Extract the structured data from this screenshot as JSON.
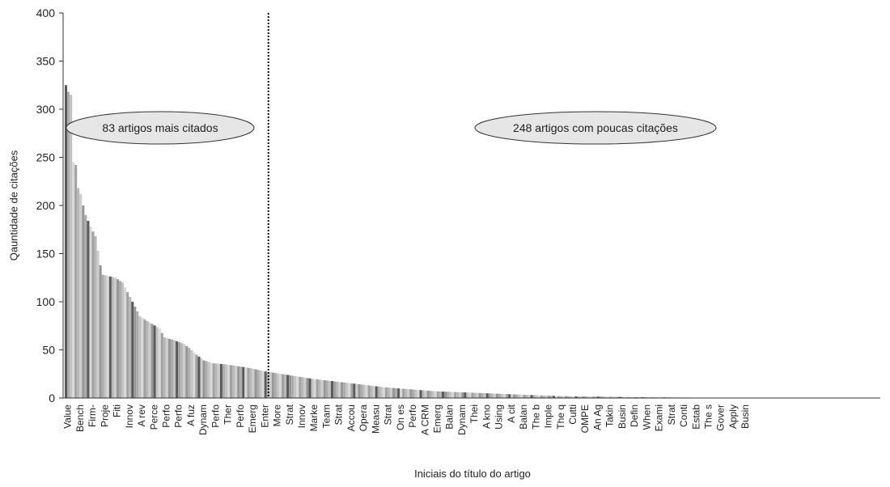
{
  "chart_data": {
    "type": "bar",
    "xlabel": "Iniciais do título do artigo",
    "ylabel": "Qauntidade de citações",
    "ylim": [
      0,
      400
    ],
    "yticks": [
      0,
      50,
      100,
      150,
      200,
      250,
      300,
      350,
      400
    ],
    "n_articles": 331,
    "split_after_index": 83,
    "labeled_every": 5,
    "tick_labels": [
      "Value",
      "Bench",
      "Firm-",
      "Proje",
      "Fiti",
      "Innov",
      "A rev",
      "Perce",
      "Perfo",
      "Perfo",
      "A fuz",
      "Dynam",
      "Perfo",
      "Ther",
      "Perfo",
      "Emerg",
      "Enter",
      "More",
      "Strat",
      "Innov",
      "Marke",
      "Team",
      "Strat",
      "Accou",
      "Opera",
      "Measu",
      "Strat",
      "On es",
      "Perfo",
      "A CRM",
      "Emerg",
      "Balan",
      "Dynam",
      "Thei",
      "A kno",
      "Using",
      "A cit",
      "Balan",
      "The b",
      "Imple",
      "The q",
      "Cutti",
      "OMPE",
      "An Ag",
      "Takin",
      "Busin",
      "Defin",
      "When",
      "Exami",
      "Strat",
      "Conti",
      "Estab",
      "The s",
      "Gover",
      "Apply",
      "Busin"
    ],
    "value_curve": [
      [
        0,
        325
      ],
      [
        1,
        318
      ],
      [
        2,
        315
      ],
      [
        3,
        245
      ],
      [
        4,
        242
      ],
      [
        5,
        218
      ],
      [
        6,
        212
      ],
      [
        7,
        200
      ],
      [
        8,
        190
      ],
      [
        10,
        178
      ],
      [
        12,
        168
      ],
      [
        14,
        138
      ],
      [
        15,
        128
      ],
      [
        20,
        125
      ],
      [
        23,
        120
      ],
      [
        25,
        110
      ],
      [
        27,
        100
      ],
      [
        30,
        85
      ],
      [
        33,
        80
      ],
      [
        35,
        77
      ],
      [
        38,
        72
      ],
      [
        40,
        63
      ],
      [
        44,
        60
      ],
      [
        48,
        56
      ],
      [
        50,
        52
      ],
      [
        53,
        45
      ],
      [
        56,
        39
      ],
      [
        60,
        36
      ],
      [
        65,
        35
      ],
      [
        70,
        33
      ],
      [
        75,
        31
      ],
      [
        80,
        28
      ],
      [
        85,
        26
      ],
      [
        90,
        24
      ],
      [
        100,
        20
      ],
      [
        110,
        17
      ],
      [
        120,
        14
      ],
      [
        130,
        11
      ],
      [
        140,
        9
      ],
      [
        150,
        7
      ],
      [
        160,
        6
      ],
      [
        170,
        5
      ],
      [
        180,
        4
      ],
      [
        190,
        3
      ],
      [
        200,
        2
      ],
      [
        215,
        1.5
      ],
      [
        230,
        1
      ],
      [
        250,
        0.5
      ],
      [
        270,
        0.3
      ],
      [
        300,
        0.1
      ],
      [
        330,
        0
      ]
    ],
    "annotations": [
      {
        "text": "83 artigos mais citados"
      },
      {
        "text": "248 artigos com poucas citações"
      }
    ]
  }
}
